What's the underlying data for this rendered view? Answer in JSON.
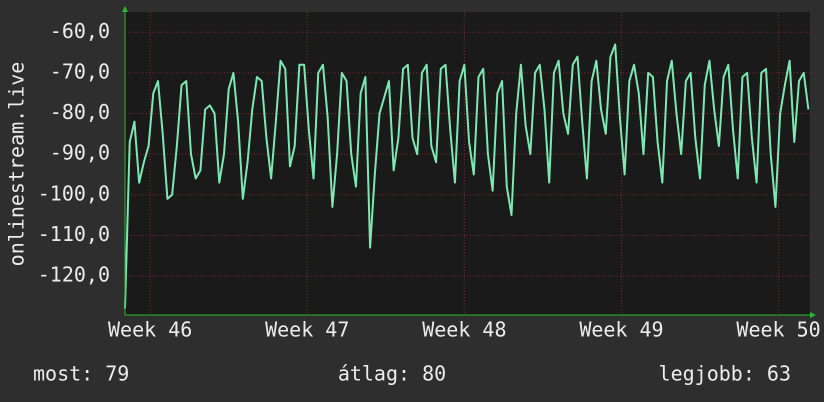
{
  "chart_data": {
    "type": "line",
    "y_label": "onlinestream.live",
    "x": [
      45.84,
      45.87,
      45.9,
      45.93,
      45.96,
      45.99,
      46.02,
      46.05,
      46.08,
      46.11,
      46.14,
      46.17,
      46.2,
      46.23,
      46.26,
      46.29,
      46.32,
      46.35,
      46.38,
      46.41,
      46.44,
      46.47,
      46.5,
      46.53,
      46.56,
      46.59,
      46.62,
      46.65,
      46.68,
      46.71,
      46.74,
      46.77,
      46.8,
      46.83,
      46.86,
      46.89,
      46.92,
      46.95,
      46.98,
      47.01,
      47.04,
      47.07,
      47.1,
      47.13,
      47.16,
      47.19,
      47.22,
      47.25,
      47.28,
      47.31,
      47.34,
      47.37,
      47.4,
      47.43,
      47.46,
      47.49,
      47.52,
      47.55,
      47.58,
      47.61,
      47.64,
      47.67,
      47.7,
      47.73,
      47.76,
      47.79,
      47.82,
      47.85,
      47.88,
      47.91,
      47.94,
      47.97,
      48.0,
      48.03,
      48.06,
      48.09,
      48.12,
      48.15,
      48.18,
      48.21,
      48.24,
      48.27,
      48.3,
      48.33,
      48.36,
      48.39,
      48.42,
      48.45,
      48.48,
      48.51,
      48.54,
      48.57,
      48.6,
      48.63,
      48.66,
      48.69,
      48.72,
      48.75,
      48.78,
      48.81,
      48.84,
      48.87,
      48.9,
      48.93,
      48.96,
      48.99,
      49.02,
      49.05,
      49.08,
      49.11,
      49.14,
      49.17,
      49.2,
      49.23,
      49.26,
      49.29,
      49.32,
      49.35,
      49.38,
      49.41,
      49.44,
      49.47,
      49.5,
      49.53,
      49.56,
      49.59,
      49.62,
      49.65,
      49.68,
      49.71,
      49.74,
      49.77,
      49.8,
      49.83,
      49.86,
      49.89,
      49.92,
      49.95,
      49.98,
      50.01,
      50.04,
      50.07,
      50.1,
      50.13,
      50.16,
      50.19
    ],
    "series": [
      {
        "color": "#7ee8b2",
        "values": [
          -128,
          -87,
          -82,
          -97,
          -92,
          -88,
          -75,
          -72,
          -85,
          -101,
          -100,
          -88,
          -73,
          -72,
          -90,
          -96,
          -94,
          -79,
          -78,
          -80,
          -97,
          -90,
          -74,
          -70,
          -82,
          -101,
          -92,
          -79,
          -71,
          -72,
          -86,
          -96,
          -82,
          -67,
          -69,
          -93,
          -88,
          -68,
          -68,
          -84,
          -96,
          -70,
          -68,
          -81,
          -103,
          -90,
          -70,
          -72,
          -90,
          -98,
          -75,
          -71,
          -113,
          -95,
          -80,
          -76,
          -72,
          -94,
          -86,
          -69,
          -68,
          -86,
          -90,
          -70,
          -68,
          -88,
          -92,
          -69,
          -68,
          -84,
          -97,
          -72,
          -68,
          -87,
          -95,
          -71,
          -69,
          -90,
          -99,
          -75,
          -72,
          -98,
          -105,
          -80,
          -68,
          -83,
          -90,
          -70,
          -68,
          -79,
          -97,
          -70,
          -67,
          -80,
          -85,
          -68,
          -66,
          -82,
          -96,
          -72,
          -67,
          -79,
          -85,
          -66,
          -63,
          -81,
          -95,
          -72,
          -68,
          -75,
          -90,
          -70,
          -71,
          -87,
          -97,
          -72,
          -67,
          -80,
          -90,
          -72,
          -70,
          -86,
          -96,
          -73,
          -67,
          -79,
          -88,
          -71,
          -68,
          -84,
          -96,
          -71,
          -70,
          -86,
          -97,
          -70,
          -69,
          -90,
          -103,
          -80,
          -73,
          -67,
          -87,
          -72,
          -70,
          -79
        ]
      }
    ],
    "xlim": [
      45.84,
      50.2
    ],
    "xticks": [
      {
        "value": 46,
        "label": "Week 46"
      },
      {
        "value": 47,
        "label": "Week 47"
      },
      {
        "value": 48,
        "label": "Week 48"
      },
      {
        "value": 49,
        "label": "Week 49"
      },
      {
        "value": 50,
        "label": "Week 50"
      }
    ],
    "ylim": [
      -129.6,
      -55
    ],
    "yticks": [
      {
        "value": -120,
        "label": "-120,0"
      },
      {
        "value": -110,
        "label": "-110,0"
      },
      {
        "value": -100,
        "label": "-100,0"
      },
      {
        "value": -90,
        "label": "-90,0"
      },
      {
        "value": -80,
        "label": "-80,0"
      },
      {
        "value": -70,
        "label": "-70,0"
      },
      {
        "value": -60,
        "label": "-60,0"
      }
    ],
    "grid": true,
    "footer": [
      "most: 79",
      "átlag: 80",
      "legjobb: 63"
    ]
  }
}
